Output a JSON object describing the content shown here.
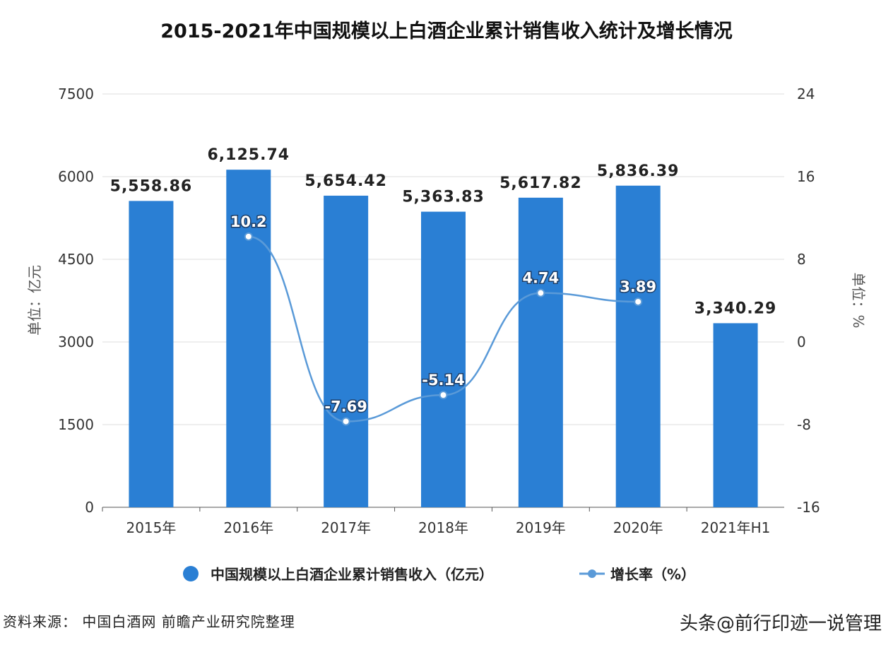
{
  "chart_data": {
    "type": "bar",
    "title": "2015-2021年中国规模以上白酒企业累计销售收入统计及增长情况",
    "categories": [
      "2015年",
      "2016年",
      "2017年",
      "2018年",
      "2019年",
      "2020年",
      "2021年H1"
    ],
    "series": [
      {
        "name": "中国规模以上白酒企业累计销售收入（亿元）",
        "type": "bar",
        "axis": "left",
        "values": [
          5558.86,
          6125.74,
          5654.42,
          5363.83,
          5617.82,
          5836.39,
          3340.29
        ],
        "labels": [
          "5,558.86",
          "6,125.74",
          "5,654.42",
          "5,363.83",
          "5,617.82",
          "5,836.39",
          "3,340.29"
        ],
        "color": "#2a7fd4"
      },
      {
        "name": "增长率（%）",
        "type": "line",
        "axis": "right",
        "values": [
          null,
          10.2,
          -7.69,
          -5.14,
          4.74,
          3.89,
          null
        ],
        "labels": [
          null,
          "10.2",
          "-7.69",
          "-5.14",
          "4.74",
          "3.89",
          null
        ],
        "color": "#5a9ad8"
      }
    ],
    "ylabel": "单位：亿元",
    "y2label": "单位：%",
    "ylim": [
      0,
      7500
    ],
    "y2lim": [
      -16,
      24
    ],
    "yticks": [
      "0",
      "1500",
      "3000",
      "4500",
      "6000",
      "7500"
    ],
    "y2ticks": [
      "-16",
      "-8",
      "0",
      "8",
      "16",
      "24"
    ],
    "grid": true,
    "legend": "bottom"
  },
  "source": "资料来源：  中国白酒网 前瞻产业研究院整理",
  "watermark": "头条@前行印迹一说管理"
}
